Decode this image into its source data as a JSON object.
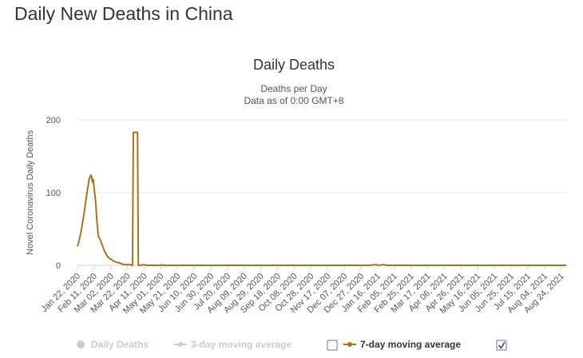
{
  "page": {
    "title": "Daily New Deaths in China"
  },
  "chart_data": {
    "type": "line",
    "title": "Daily Deaths",
    "subtitle": "Deaths per Day",
    "subtitle2": "Data as of 0:00 GMT+8",
    "ylabel": "Novel Coronavirus Daily Deaths",
    "xlabel": "",
    "ylim": [
      0,
      200
    ],
    "yticks": [
      0,
      100,
      200
    ],
    "grid": true,
    "xtick_labels": [
      "Jan 22, 2020",
      "Feb 11, 2020",
      "Mar 02, 2020",
      "Mar 22, 2020",
      "Apr 11, 2020",
      "May 01, 2020",
      "May 21, 2020",
      "Jun 10, 2020",
      "Jun 30, 2020",
      "Jul 20, 2020",
      "Aug 09, 2020",
      "Aug 29, 2020",
      "Sep 18, 2020",
      "Oct 08, 2020",
      "Oct 28, 2020",
      "Nov 17, 2020",
      "Dec 07, 2020",
      "Dec 27, 2020",
      "Jan 16, 2021",
      "Feb 05, 2021",
      "Feb 25, 2021",
      "Mar 17, 2021",
      "Apr 06, 2021",
      "Apr 26, 2021",
      "May 16, 2021",
      "Jun 05, 2021",
      "Jun 25, 2021",
      "Jul 15, 2021",
      "Aug 04, 2021",
      "Aug 24, 2021"
    ],
    "x_range_days": [
      0,
      586
    ],
    "series": [
      {
        "name": "7-day moving average",
        "color": "#a4761c",
        "points": [
          [
            0,
            26
          ],
          [
            2,
            34
          ],
          [
            4,
            45
          ],
          [
            6,
            58
          ],
          [
            8,
            72
          ],
          [
            10,
            88
          ],
          [
            12,
            104
          ],
          [
            14,
            118
          ],
          [
            16,
            124
          ],
          [
            17,
            122
          ],
          [
            18,
            114
          ],
          [
            19,
            118
          ],
          [
            20,
            106
          ],
          [
            21,
            96
          ],
          [
            22,
            84
          ],
          [
            23,
            66
          ],
          [
            24,
            52
          ],
          [
            25,
            40
          ],
          [
            27,
            36
          ],
          [
            29,
            30
          ],
          [
            31,
            24
          ],
          [
            33,
            18
          ],
          [
            35,
            14
          ],
          [
            37,
            11
          ],
          [
            39,
            9
          ],
          [
            41,
            8
          ],
          [
            43,
            6
          ],
          [
            45,
            5
          ],
          [
            47,
            4
          ],
          [
            49,
            4
          ],
          [
            51,
            3
          ],
          [
            53,
            2
          ],
          [
            55,
            1
          ],
          [
            57,
            1
          ],
          [
            60,
            1
          ],
          [
            63,
            1
          ],
          [
            65,
            0
          ],
          [
            66,
            0
          ],
          [
            67,
            183
          ],
          [
            72,
            183
          ],
          [
            73,
            0
          ],
          [
            75,
            0
          ],
          [
            80,
            1
          ],
          [
            82,
            0
          ],
          [
            90,
            0
          ],
          [
            100,
            0
          ],
          [
            101,
            1
          ],
          [
            102,
            0
          ],
          [
            150,
            0
          ],
          [
            200,
            0
          ],
          [
            250,
            0
          ],
          [
            300,
            0
          ],
          [
            350,
            0
          ],
          [
            358,
            1
          ],
          [
            360,
            0
          ],
          [
            368,
            1
          ],
          [
            370,
            0
          ],
          [
            400,
            0
          ],
          [
            450,
            0
          ],
          [
            500,
            0
          ],
          [
            550,
            0
          ],
          [
            586,
            0
          ]
        ]
      }
    ],
    "legend": [
      {
        "label": "Daily Deaths",
        "active": false
      },
      {
        "label": "3-day moving average",
        "active": false
      },
      {
        "label": "7-day moving average",
        "active": true
      }
    ]
  }
}
